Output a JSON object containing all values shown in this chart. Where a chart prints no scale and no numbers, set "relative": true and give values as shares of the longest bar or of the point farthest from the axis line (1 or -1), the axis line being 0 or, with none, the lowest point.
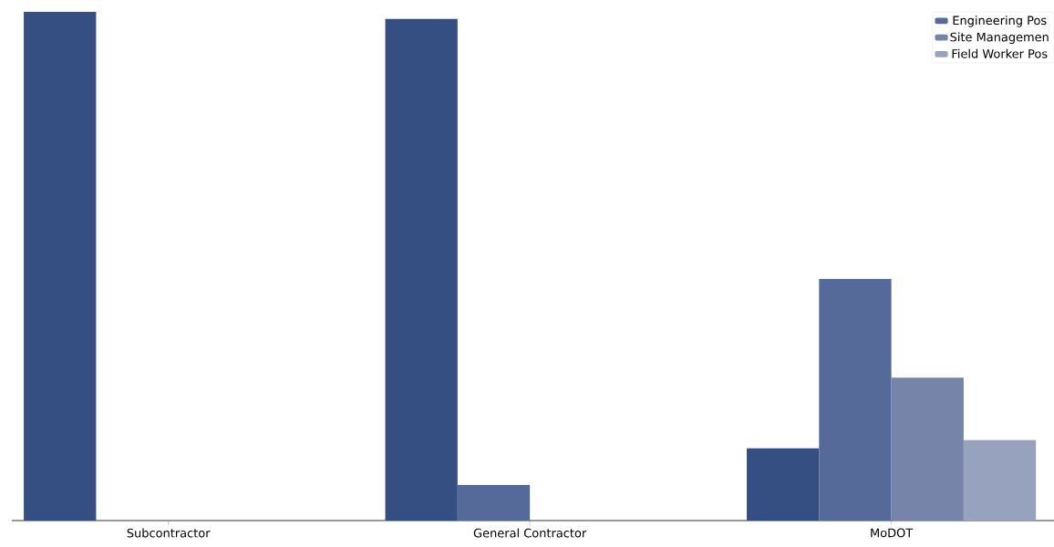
{
  "chart_data": {
    "type": "bar",
    "relative": true,
    "categories": [
      "Subcontractor",
      "General Contractor",
      "MoDOT"
    ],
    "series": [
      {
        "color": "#364f82",
        "values": [
          1,
          0.986,
          0.142
        ]
      },
      {
        "name": "Engineering Pos",
        "color": "#556a98",
        "values": [
          0,
          0.07,
          0.475
        ]
      },
      {
        "name": "Site Managemen",
        "color": "#7584a8",
        "values": [
          0,
          0,
          0.281
        ]
      },
      {
        "name": "Field Worker Pos",
        "color": "#97a2bf",
        "values": [
          0,
          0,
          0.158
        ]
      }
    ],
    "legend": "top right",
    "grid": false
  }
}
